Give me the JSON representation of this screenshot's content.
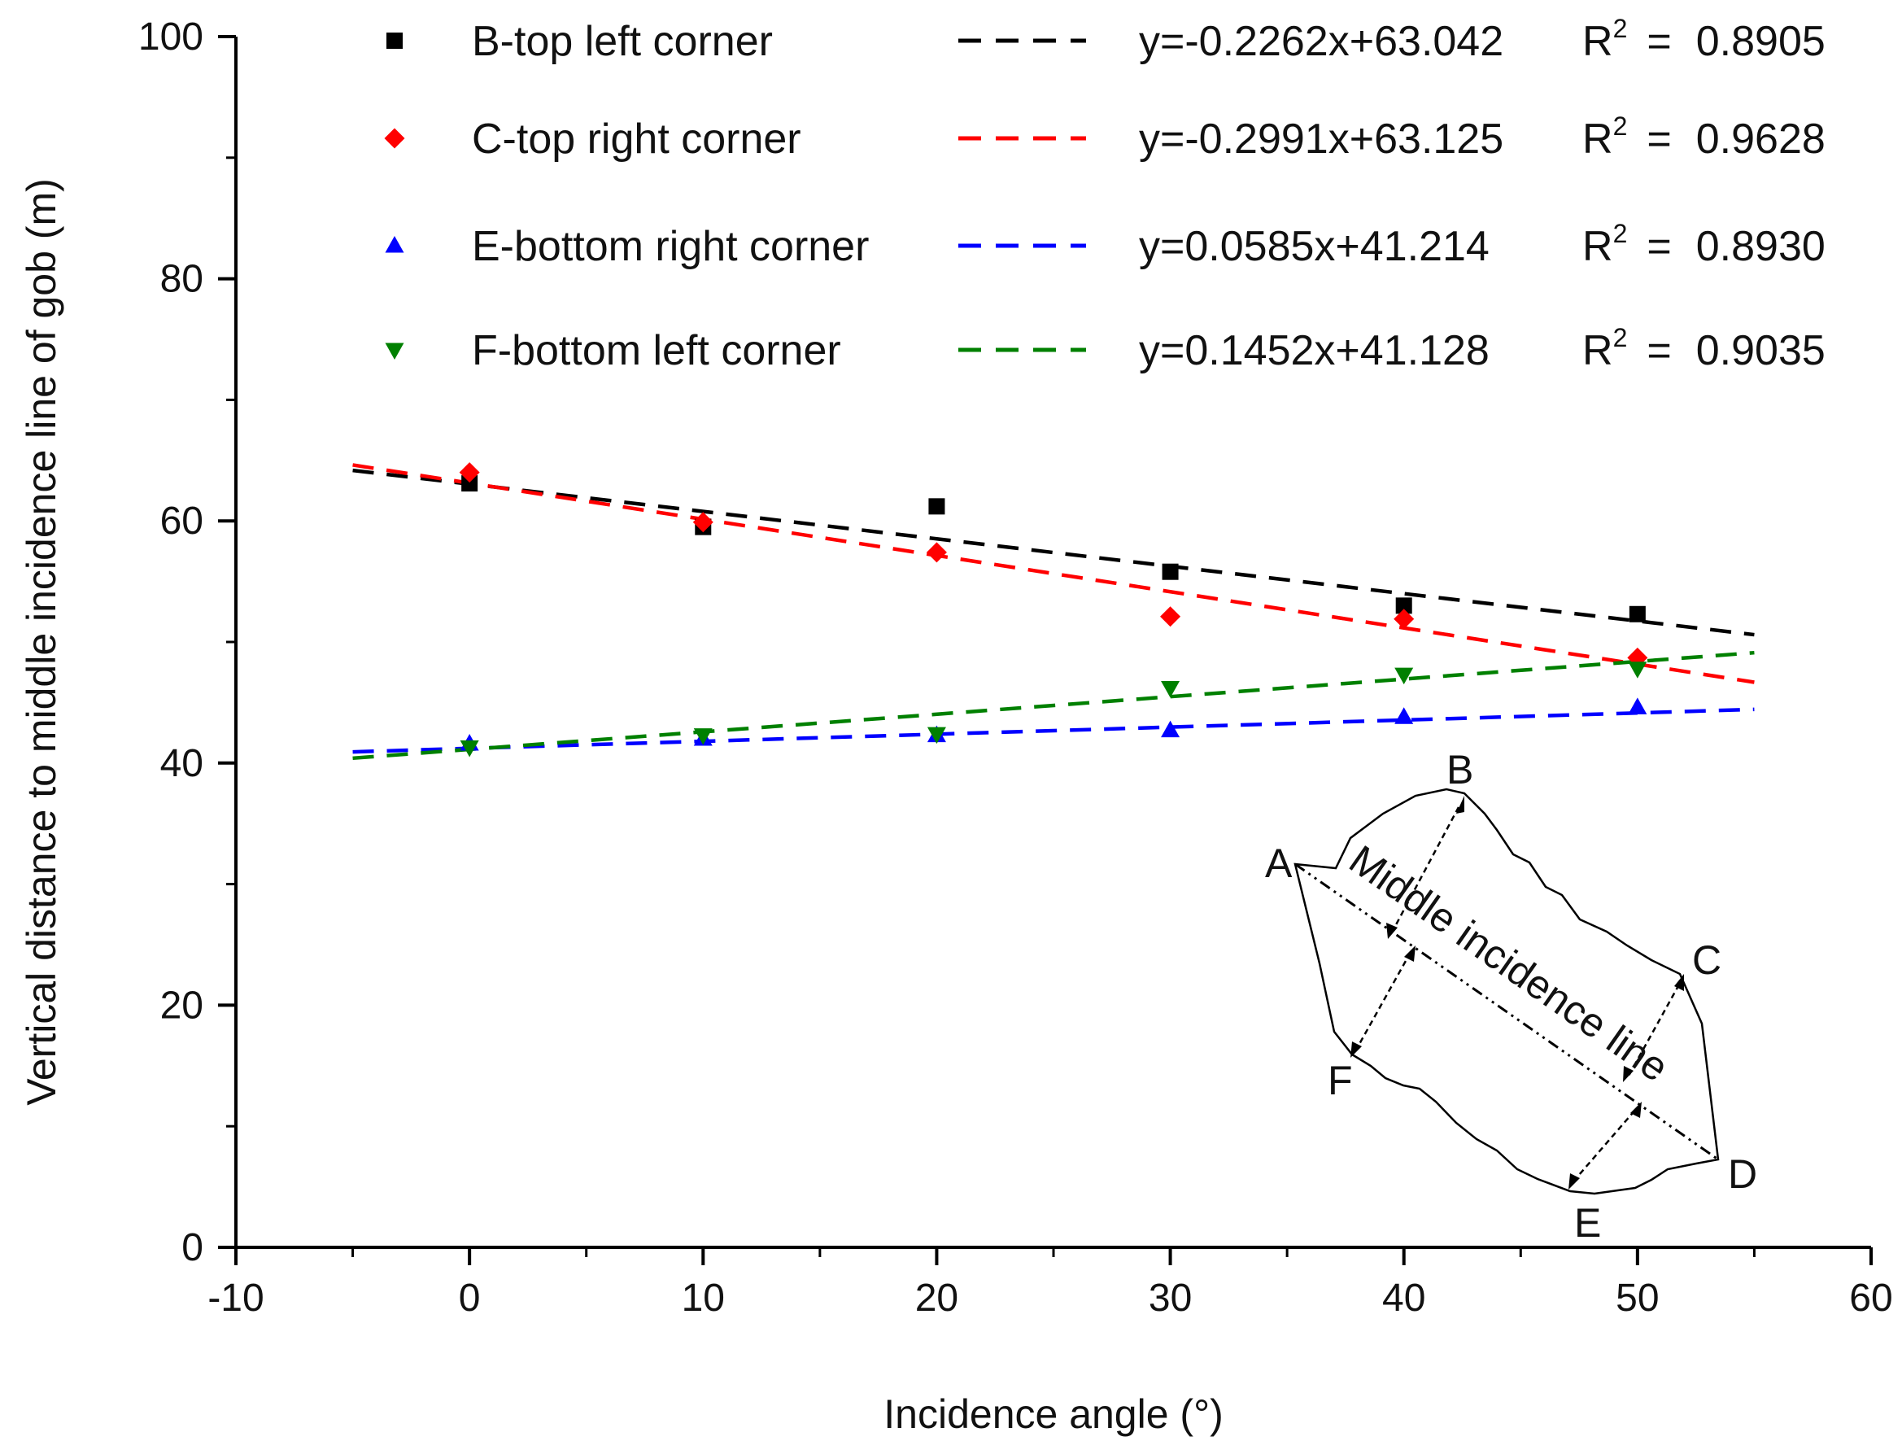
{
  "chart_data": {
    "type": "scatter",
    "title": "",
    "xlabel": "Incidence angle (°)",
    "ylabel": "Vertical distance to middle incidence line of gob (m)",
    "xlim": [
      -10,
      60
    ],
    "ylim": [
      0,
      100
    ],
    "xticks": [
      "-10",
      "0",
      "10",
      "20",
      "30",
      "40",
      "50",
      "60"
    ],
    "yticks": [
      "0",
      "20",
      "40",
      "60",
      "80",
      "100"
    ],
    "fit_range": [
      -5,
      55
    ],
    "legend_position": "top",
    "x": [
      0,
      10,
      20,
      30,
      40,
      50
    ],
    "series": [
      {
        "name": "B-top left corner",
        "marker": "square",
        "color": "#000000",
        "values": [
          63.1,
          59.5,
          61.2,
          55.8,
          53.0,
          52.3
        ],
        "fit": {
          "slope": -0.2262,
          "intercept": 63.042,
          "equation": "y=-0.2262x+63.042",
          "r2_value": "0.8905"
        }
      },
      {
        "name": "C-top right corner",
        "marker": "diamond",
        "color": "#ff0000",
        "values": [
          64.0,
          59.9,
          57.4,
          52.1,
          51.9,
          48.7
        ],
        "fit": {
          "slope": -0.2991,
          "intercept": 63.125,
          "equation": "y=-0.2991x+63.125",
          "r2_value": "0.9628"
        }
      },
      {
        "name": "E-bottom right corner",
        "marker": "triangle-up",
        "color": "#0000ff",
        "values": [
          41.6,
          42.0,
          42.3,
          42.7,
          43.8,
          44.6
        ],
        "fit": {
          "slope": 0.0585,
          "intercept": 41.214,
          "equation": "y=0.0585x+41.214",
          "r2_value": "0.8930"
        }
      },
      {
        "name": "F-bottom left corner",
        "marker": "triangle-down",
        "color": "#008000",
        "values": [
          41.3,
          42.3,
          42.4,
          46.2,
          47.3,
          47.8
        ],
        "fit": {
          "slope": 0.1452,
          "intercept": 41.128,
          "equation": "y=0.1452x+41.128",
          "r2_value": "0.9035"
        }
      }
    ],
    "r2_label": "R",
    "r2_superscript": "2",
    "r2_equals": "=",
    "inset": {
      "point_labels": [
        "A",
        "B",
        "C",
        "D",
        "E",
        "F"
      ],
      "line_label": "Middle incidence line"
    }
  }
}
